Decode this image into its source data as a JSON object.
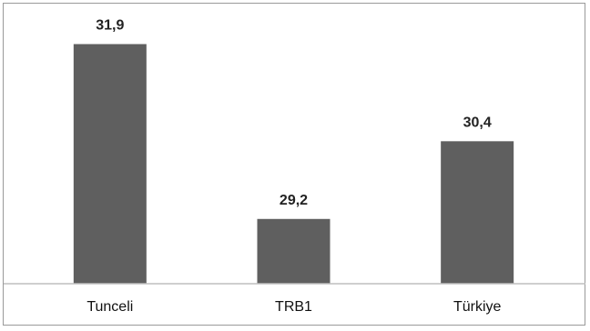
{
  "chart_data": {
    "type": "bar",
    "categories": [
      "Tunceli",
      "TRB1",
      "Türkiye"
    ],
    "values": [
      31.9,
      29.2,
      30.4
    ],
    "value_labels": [
      "31,9",
      "29,2",
      "30,4"
    ],
    "ylim": [
      28.2,
      32.3
    ],
    "grid": false,
    "legend": "none",
    "colors": {
      "bar": "#5f5f5f",
      "axis": "#bfbfbf"
    }
  }
}
